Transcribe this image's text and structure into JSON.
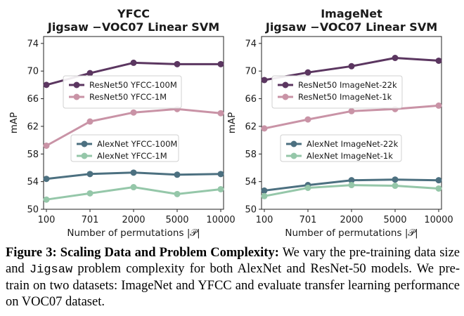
{
  "colors": {
    "resnet_big": "#5b3660",
    "resnet_small": "#c993a6",
    "alexnet_big": "#4c7080",
    "alexnet_small": "#95c7a9"
  },
  "chart_data": [
    {
      "type": "line",
      "title": "YFCC",
      "subtitle": "Jigsaw −VOC07 Linear SVM",
      "xlabel": "Number of permutations |𝒫|",
      "ylabel": "mAP",
      "categories": [
        "100",
        "701",
        "2000",
        "5000",
        "10000"
      ],
      "yticks": [
        50,
        54,
        58,
        62,
        66,
        70,
        74
      ],
      "ylim": [
        50,
        75
      ],
      "grid": false,
      "series": [
        {
          "name": "ResNet50 YFCC-100M",
          "color": "#5b3660",
          "values": [
            68.0,
            69.7,
            71.2,
            71.0,
            71.0
          ]
        },
        {
          "name": "ResNet50 YFCC-1M",
          "color": "#c993a6",
          "values": [
            59.2,
            62.7,
            64.0,
            64.5,
            63.9
          ]
        },
        {
          "name": "AlexNet YFCC-100M",
          "color": "#4c7080",
          "values": [
            54.4,
            55.1,
            55.3,
            55.0,
            55.1
          ]
        },
        {
          "name": "AlexNet YFCC-1M",
          "color": "#95c7a9",
          "values": [
            51.4,
            52.3,
            53.2,
            52.2,
            52.9
          ]
        }
      ]
    },
    {
      "type": "line",
      "title": "ImageNet",
      "subtitle": "Jigsaw −VOC07 Linear SVM",
      "xlabel": "Number of permutations |𝒫|",
      "ylabel": "mAP",
      "categories": [
        "100",
        "701",
        "2000",
        "5000",
        "10000"
      ],
      "yticks": [
        50,
        54,
        58,
        62,
        66,
        70,
        74
      ],
      "ylim": [
        50,
        75
      ],
      "grid": false,
      "series": [
        {
          "name": "ResNet50 ImageNet-22k",
          "color": "#5b3660",
          "values": [
            68.7,
            69.8,
            70.7,
            71.9,
            71.5
          ]
        },
        {
          "name": "ResNet50 ImageNet-1k",
          "color": "#c993a6",
          "values": [
            61.7,
            63.0,
            64.2,
            64.5,
            65.0
          ]
        },
        {
          "name": "AlexNet ImageNet-22k",
          "color": "#4c7080",
          "values": [
            52.7,
            53.5,
            54.2,
            54.3,
            54.2
          ]
        },
        {
          "name": "AlexNet ImageNet-1k",
          "color": "#95c7a9",
          "values": [
            51.9,
            53.1,
            53.5,
            53.4,
            53.0
          ]
        }
      ]
    }
  ],
  "caption": {
    "label": "Figure 3:",
    "heading": "Scaling Data and Problem Complexity:",
    "text_1": "We vary the pre-training data size and",
    "code": "Jigsaw",
    "text_2": "problem complexity for both AlexNet and ResNet-50 models. We pre-train on two datasets: ImageNet and YFCC and evaluate transfer learning performance on VOC07 dataset."
  }
}
